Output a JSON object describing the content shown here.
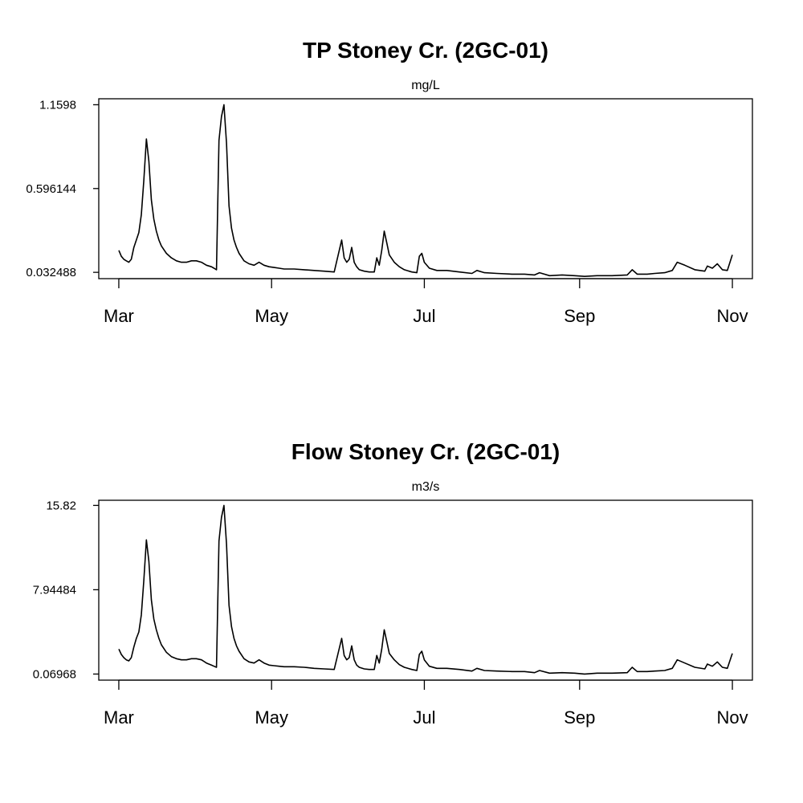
{
  "chart_data": [
    {
      "type": "line",
      "title": "TP Stoney Cr. (2GC-01)",
      "ylabel": "mg/L",
      "xlabel": "",
      "y_ticks": [
        {
          "value": 0.032488,
          "label": "0.032488"
        },
        {
          "value": 0.596144,
          "label": "0.596144"
        },
        {
          "value": 1.1598,
          "label": "1.1598"
        }
      ],
      "x_ticks": [
        {
          "date": "2016-03-01",
          "label": "Mar"
        },
        {
          "date": "2016-05-01",
          "label": "May"
        },
        {
          "date": "2016-07-01",
          "label": "Jul"
        },
        {
          "date": "2016-09-01",
          "label": "Sep"
        },
        {
          "date": "2016-11-01",
          "label": "Nov"
        }
      ],
      "xlim": [
        "2016-02-22",
        "2016-11-09"
      ],
      "ylim": [
        -0.01,
        1.2
      ],
      "grid": false,
      "series": [
        {
          "x": [
            "2016-03-01",
            "2016-03-02",
            "2016-03-03",
            "2016-03-04",
            "2016-03-05",
            "2016-03-06",
            "2016-03-07",
            "2016-03-08",
            "2016-03-09",
            "2016-03-10",
            "2016-03-11",
            "2016-03-12",
            "2016-03-13",
            "2016-03-14",
            "2016-03-15",
            "2016-03-16",
            "2016-03-17",
            "2016-03-18",
            "2016-03-20",
            "2016-03-22",
            "2016-03-24",
            "2016-03-26",
            "2016-03-28",
            "2016-03-30",
            "2016-04-01",
            "2016-04-03",
            "2016-04-05",
            "2016-04-07",
            "2016-04-08",
            "2016-04-09",
            "2016-04-10",
            "2016-04-11",
            "2016-04-12",
            "2016-04-13",
            "2016-04-14",
            "2016-04-15",
            "2016-04-16",
            "2016-04-17",
            "2016-04-18",
            "2016-04-20",
            "2016-04-22",
            "2016-04-24",
            "2016-04-26",
            "2016-04-28",
            "2016-04-30",
            "2016-05-02",
            "2016-05-04",
            "2016-05-06",
            "2016-05-10",
            "2016-05-14",
            "2016-05-18",
            "2016-05-22",
            "2016-05-26",
            "2016-05-29",
            "2016-05-30",
            "2016-05-31",
            "2016-06-01",
            "2016-06-02",
            "2016-06-03",
            "2016-06-04",
            "2016-06-05",
            "2016-06-07",
            "2016-06-09",
            "2016-06-11",
            "2016-06-12",
            "2016-06-13",
            "2016-06-14",
            "2016-06-15",
            "2016-06-16",
            "2016-06-17",
            "2016-06-19",
            "2016-06-21",
            "2016-06-23",
            "2016-06-26",
            "2016-06-28",
            "2016-06-29",
            "2016-06-30",
            "2016-07-01",
            "2016-07-03",
            "2016-07-06",
            "2016-07-10",
            "2016-07-15",
            "2016-07-20",
            "2016-07-22",
            "2016-07-25",
            "2016-07-30",
            "2016-08-05",
            "2016-08-10",
            "2016-08-14",
            "2016-08-16",
            "2016-08-20",
            "2016-08-25",
            "2016-08-30",
            "2016-09-03",
            "2016-09-08",
            "2016-09-14",
            "2016-09-20",
            "2016-09-22",
            "2016-09-24",
            "2016-09-28",
            "2016-10-01",
            "2016-10-05",
            "2016-10-08",
            "2016-10-10",
            "2016-10-13",
            "2016-10-17",
            "2016-10-21",
            "2016-10-22",
            "2016-10-24",
            "2016-10-26",
            "2016-10-28",
            "2016-10-30",
            "2016-11-01"
          ],
          "y": [
            0.18,
            0.14,
            0.12,
            0.11,
            0.1,
            0.12,
            0.2,
            0.25,
            0.3,
            0.42,
            0.65,
            0.93,
            0.78,
            0.52,
            0.39,
            0.31,
            0.25,
            0.21,
            0.16,
            0.13,
            0.11,
            0.1,
            0.1,
            0.11,
            0.11,
            0.1,
            0.08,
            0.07,
            0.06,
            0.05,
            0.92,
            1.08,
            1.16,
            0.9,
            0.48,
            0.33,
            0.25,
            0.2,
            0.16,
            0.11,
            0.09,
            0.08,
            0.1,
            0.08,
            0.07,
            0.065,
            0.06,
            0.055,
            0.055,
            0.05,
            0.045,
            0.04,
            0.035,
            0.25,
            0.13,
            0.1,
            0.12,
            0.2,
            0.1,
            0.07,
            0.05,
            0.04,
            0.035,
            0.035,
            0.13,
            0.08,
            0.18,
            0.31,
            0.23,
            0.15,
            0.1,
            0.07,
            0.05,
            0.035,
            0.03,
            0.14,
            0.16,
            0.1,
            0.06,
            0.045,
            0.045,
            0.035,
            0.025,
            0.045,
            0.03,
            0.025,
            0.02,
            0.02,
            0.015,
            0.03,
            0.01,
            0.015,
            0.01,
            0.005,
            0.01,
            0.01,
            0.015,
            0.05,
            0.02,
            0.02,
            0.025,
            0.03,
            0.045,
            0.1,
            0.08,
            0.05,
            0.04,
            0.075,
            0.06,
            0.09,
            0.05,
            0.045,
            0.15
          ]
        }
      ]
    },
    {
      "type": "line",
      "title": "Flow Stoney Cr. (2GC-01)",
      "ylabel": "m3/s",
      "xlabel": "",
      "y_ticks": [
        {
          "value": 0.06968,
          "label": "0.06968"
        },
        {
          "value": 7.94484,
          "label": "7.94484"
        },
        {
          "value": 15.82,
          "label": "15.82"
        }
      ],
      "x_ticks": [
        {
          "date": "2016-03-01",
          "label": "Mar"
        },
        {
          "date": "2016-05-01",
          "label": "May"
        },
        {
          "date": "2016-07-01",
          "label": "Jul"
        },
        {
          "date": "2016-09-01",
          "label": "Sep"
        },
        {
          "date": "2016-11-01",
          "label": "Nov"
        }
      ],
      "xlim": [
        "2016-02-22",
        "2016-11-09"
      ],
      "ylim": [
        -0.5,
        16.3
      ],
      "grid": false,
      "series": [
        {
          "x": [
            "2016-03-01",
            "2016-03-02",
            "2016-03-03",
            "2016-03-04",
            "2016-03-05",
            "2016-03-06",
            "2016-03-07",
            "2016-03-08",
            "2016-03-09",
            "2016-03-10",
            "2016-03-11",
            "2016-03-12",
            "2016-03-13",
            "2016-03-14",
            "2016-03-15",
            "2016-03-16",
            "2016-03-17",
            "2016-03-18",
            "2016-03-20",
            "2016-03-22",
            "2016-03-24",
            "2016-03-26",
            "2016-03-28",
            "2016-03-30",
            "2016-04-01",
            "2016-04-03",
            "2016-04-05",
            "2016-04-07",
            "2016-04-08",
            "2016-04-09",
            "2016-04-10",
            "2016-04-11",
            "2016-04-12",
            "2016-04-13",
            "2016-04-14",
            "2016-04-15",
            "2016-04-16",
            "2016-04-17",
            "2016-04-18",
            "2016-04-20",
            "2016-04-22",
            "2016-04-24",
            "2016-04-26",
            "2016-04-28",
            "2016-04-30",
            "2016-05-02",
            "2016-05-04",
            "2016-05-06",
            "2016-05-10",
            "2016-05-14",
            "2016-05-18",
            "2016-05-22",
            "2016-05-26",
            "2016-05-29",
            "2016-05-30",
            "2016-05-31",
            "2016-06-01",
            "2016-06-02",
            "2016-06-03",
            "2016-06-04",
            "2016-06-05",
            "2016-06-07",
            "2016-06-09",
            "2016-06-11",
            "2016-06-12",
            "2016-06-13",
            "2016-06-14",
            "2016-06-15",
            "2016-06-16",
            "2016-06-17",
            "2016-06-19",
            "2016-06-21",
            "2016-06-23",
            "2016-06-26",
            "2016-06-28",
            "2016-06-29",
            "2016-06-30",
            "2016-07-01",
            "2016-07-03",
            "2016-07-06",
            "2016-07-10",
            "2016-07-15",
            "2016-07-20",
            "2016-07-22",
            "2016-07-25",
            "2016-07-30",
            "2016-08-05",
            "2016-08-10",
            "2016-08-14",
            "2016-08-16",
            "2016-08-20",
            "2016-08-25",
            "2016-08-30",
            "2016-09-03",
            "2016-09-08",
            "2016-09-14",
            "2016-09-20",
            "2016-09-22",
            "2016-09-24",
            "2016-09-28",
            "2016-10-01",
            "2016-10-05",
            "2016-10-08",
            "2016-10-10",
            "2016-10-13",
            "2016-10-17",
            "2016-10-21",
            "2016-10-22",
            "2016-10-24",
            "2016-10-26",
            "2016-10-28",
            "2016-10-30",
            "2016-11-01"
          ],
          "y": [
            2.4,
            1.9,
            1.6,
            1.4,
            1.3,
            1.6,
            2.6,
            3.4,
            4.0,
            5.6,
            8.8,
            12.6,
            10.6,
            7.0,
            5.2,
            4.2,
            3.4,
            2.8,
            2.1,
            1.7,
            1.5,
            1.4,
            1.4,
            1.5,
            1.5,
            1.4,
            1.1,
            0.9,
            0.8,
            0.7,
            12.5,
            14.7,
            15.82,
            12.2,
            6.5,
            4.5,
            3.4,
            2.7,
            2.2,
            1.5,
            1.2,
            1.1,
            1.4,
            1.1,
            0.9,
            0.85,
            0.8,
            0.75,
            0.75,
            0.7,
            0.6,
            0.55,
            0.5,
            3.4,
            1.8,
            1.4,
            1.6,
            2.7,
            1.4,
            0.9,
            0.7,
            0.55,
            0.5,
            0.5,
            1.8,
            1.1,
            2.4,
            4.2,
            3.1,
            2.0,
            1.4,
            0.95,
            0.7,
            0.5,
            0.4,
            1.9,
            2.2,
            1.4,
            0.8,
            0.6,
            0.6,
            0.5,
            0.35,
            0.6,
            0.4,
            0.35,
            0.3,
            0.3,
            0.2,
            0.4,
            0.15,
            0.2,
            0.15,
            0.07,
            0.15,
            0.15,
            0.2,
            0.7,
            0.3,
            0.3,
            0.35,
            0.4,
            0.6,
            1.4,
            1.1,
            0.7,
            0.55,
            1.0,
            0.8,
            1.2,
            0.7,
            0.6,
            2.0
          ]
        }
      ]
    }
  ]
}
